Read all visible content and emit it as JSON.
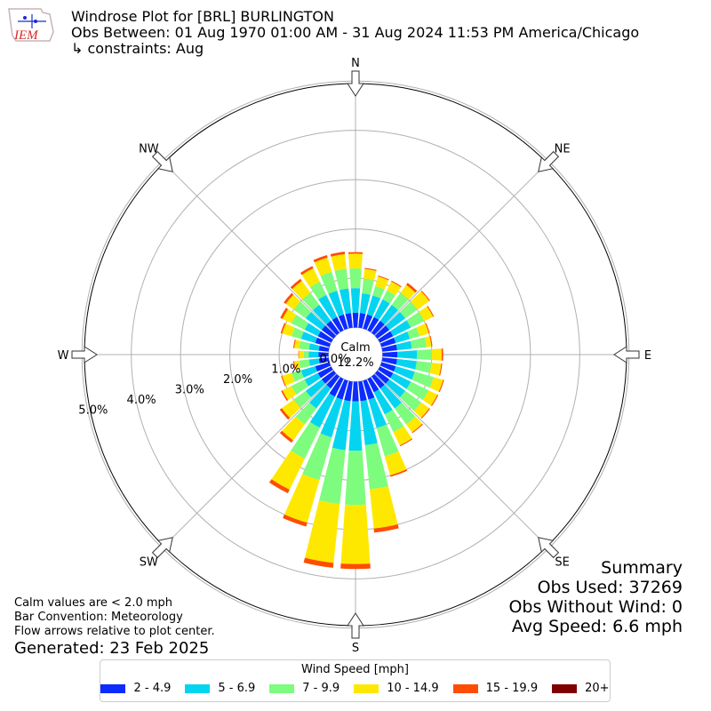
{
  "header": {
    "logo_text": "IEM",
    "title": "Windrose Plot for [BRL] BURLINGTON",
    "subtitle": "Obs Between: 01 Aug 1970 01:00 AM - 31 Aug 2024 11:53 PM America/Chicago",
    "constraints": "↳ constraints: Aug"
  },
  "notes": {
    "calm_note": "Calm values are < 2.0 mph",
    "bar_convention": "Bar Convention: Meteorology",
    "flow_arrows": "Flow arrows relative to plot center.",
    "generated": "Generated: 23 Feb 2025"
  },
  "summary": {
    "title": "Summary",
    "obs_used": "Obs Used: 37269",
    "obs_without_wind": "Obs Without Wind: 0",
    "avg_speed": "Avg Speed: 6.6 mph"
  },
  "legend": {
    "title": "Wind Speed [mph]",
    "items": [
      {
        "label": "2 - 4.9",
        "color": "#0b2bff"
      },
      {
        "label": "5 - 6.9",
        "color": "#05d4f0"
      },
      {
        "label": "7 - 9.9",
        "color": "#7dfc7d"
      },
      {
        "label": "10 - 14.9",
        "color": "#ffe800"
      },
      {
        "label": "15 - 19.9",
        "color": "#ff4d00"
      },
      {
        "label": "20+",
        "color": "#7f0000"
      }
    ]
  },
  "chart_data": {
    "type": "windrose",
    "calm_label": "Calm",
    "calm_value": "12.2%",
    "directions": [
      "N",
      "NE",
      "E",
      "SE",
      "S",
      "SW",
      "W",
      "NW"
    ],
    "radial_labels": [
      "0.0%",
      "1.0%",
      "2.0%",
      "3.0%",
      "4.0%",
      "5.0%"
    ],
    "rmax": 5.5,
    "calm_radius": 0.55,
    "bins": [
      "2 - 4.9",
      "5 - 6.9",
      "7 - 9.9",
      "10 - 14.9",
      "15 - 19.9",
      "20+"
    ],
    "sectors": [
      {
        "dir": 0,
        "values": [
          0.3,
          0.5,
          0.4,
          0.3,
          0.03,
          0
        ]
      },
      {
        "dir": 10,
        "values": [
          0.3,
          0.4,
          0.3,
          0.2,
          0.02,
          0
        ]
      },
      {
        "dir": 20,
        "values": [
          0.3,
          0.4,
          0.2,
          0.2,
          0.02,
          0
        ]
      },
      {
        "dir": 30,
        "values": [
          0.3,
          0.4,
          0.2,
          0.2,
          0.02,
          0
        ]
      },
      {
        "dir": 40,
        "values": [
          0.3,
          0.4,
          0.3,
          0.2,
          0.05,
          0
        ]
      },
      {
        "dir": 50,
        "values": [
          0.3,
          0.4,
          0.3,
          0.3,
          0.02,
          0
        ]
      },
      {
        "dir": 60,
        "values": [
          0.3,
          0.4,
          0.3,
          0.2,
          0.02,
          0
        ]
      },
      {
        "dir": 70,
        "values": [
          0.3,
          0.3,
          0.2,
          0.2,
          0.02,
          0
        ]
      },
      {
        "dir": 80,
        "values": [
          0.3,
          0.3,
          0.3,
          0.1,
          0.02,
          0
        ]
      },
      {
        "dir": 90,
        "values": [
          0.3,
          0.4,
          0.3,
          0.2,
          0.03,
          0
        ]
      },
      {
        "dir": 100,
        "values": [
          0.3,
          0.4,
          0.3,
          0.2,
          0.02,
          0
        ]
      },
      {
        "dir": 110,
        "values": [
          0.3,
          0.4,
          0.4,
          0.2,
          0.02,
          0
        ]
      },
      {
        "dir": 120,
        "values": [
          0.3,
          0.4,
          0.4,
          0.2,
          0.02,
          0
        ]
      },
      {
        "dir": 130,
        "values": [
          0.3,
          0.4,
          0.4,
          0.2,
          0.02,
          0
        ]
      },
      {
        "dir": 140,
        "values": [
          0.3,
          0.5,
          0.4,
          0.2,
          0.02,
          0
        ]
      },
      {
        "dir": 150,
        "values": [
          0.3,
          0.5,
          0.4,
          0.3,
          0.02,
          0
        ]
      },
      {
        "dir": 160,
        "values": [
          0.4,
          0.6,
          0.6,
          0.4,
          0.03,
          0
        ]
      },
      {
        "dir": 170,
        "values": [
          0.4,
          0.9,
          0.9,
          0.8,
          0.08,
          0
        ]
      },
      {
        "dir": 180,
        "values": [
          0.4,
          1.0,
          1.1,
          1.2,
          0.1,
          0
        ]
      },
      {
        "dir": 190,
        "values": [
          0.4,
          1.0,
          1.1,
          1.2,
          0.1,
          0
        ]
      },
      {
        "dir": 200,
        "values": [
          0.4,
          0.8,
          0.9,
          0.9,
          0.08,
          0
        ]
      },
      {
        "dir": 210,
        "values": [
          0.4,
          0.7,
          0.7,
          0.7,
          0.08,
          0
        ]
      },
      {
        "dir": 220,
        "values": [
          0.3,
          0.5,
          0.4,
          0.4,
          0.06,
          0
        ]
      },
      {
        "dir": 230,
        "values": [
          0.3,
          0.4,
          0.3,
          0.3,
          0.05,
          0
        ]
      },
      {
        "dir": 240,
        "values": [
          0.3,
          0.3,
          0.3,
          0.2,
          0.03,
          0
        ]
      },
      {
        "dir": 250,
        "values": [
          0.3,
          0.3,
          0.2,
          0.2,
          0.02,
          0
        ]
      },
      {
        "dir": 260,
        "values": [
          0.2,
          0.2,
          0.2,
          0.1,
          0.02,
          0
        ]
      },
      {
        "dir": 270,
        "values": [
          0.2,
          0.2,
          0.1,
          0.1,
          0.01,
          0
        ]
      },
      {
        "dir": 280,
        "values": [
          0.2,
          0.2,
          0.2,
          0.1,
          0.02,
          0
        ]
      },
      {
        "dir": 290,
        "values": [
          0.3,
          0.3,
          0.2,
          0.2,
          0.03,
          0
        ]
      },
      {
        "dir": 300,
        "values": [
          0.3,
          0.3,
          0.3,
          0.2,
          0.05,
          0
        ]
      },
      {
        "dir": 310,
        "values": [
          0.3,
          0.4,
          0.3,
          0.2,
          0.05,
          0
        ]
      },
      {
        "dir": 320,
        "values": [
          0.3,
          0.4,
          0.3,
          0.3,
          0.05,
          0
        ]
      },
      {
        "dir": 330,
        "values": [
          0.3,
          0.5,
          0.3,
          0.3,
          0.05,
          0
        ]
      },
      {
        "dir": 340,
        "values": [
          0.3,
          0.5,
          0.4,
          0.3,
          0.05,
          0
        ]
      },
      {
        "dir": 350,
        "values": [
          0.3,
          0.5,
          0.4,
          0.3,
          0.05,
          0
        ]
      }
    ]
  }
}
